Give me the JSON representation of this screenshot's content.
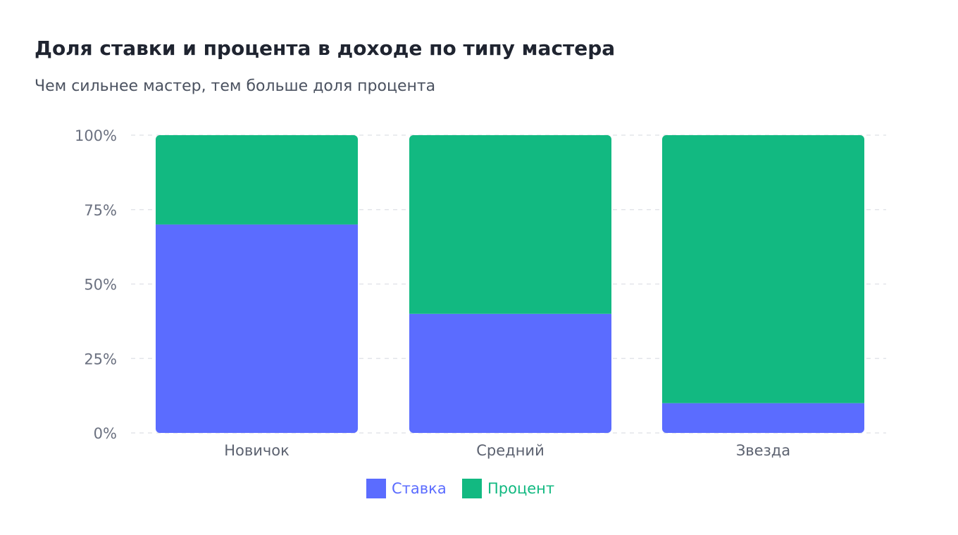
{
  "chart_data": {
    "type": "bar",
    "stacked": true,
    "title": "Доля ставки и процента в доходе по типу мастера",
    "subtitle": "Чем сильнее мастер, тем больше доля процента",
    "categories": [
      "Новичок",
      "Средний",
      "Звезда"
    ],
    "series": [
      {
        "name": "Ставка",
        "values": [
          70,
          40,
          10
        ],
        "color": "#5b6cff"
      },
      {
        "name": "Процент",
        "values": [
          30,
          60,
          90
        ],
        "color": "#12b981"
      }
    ],
    "ylim": [
      0,
      100
    ],
    "yticks": [
      0,
      25,
      50,
      75,
      100
    ],
    "ytick_labels": [
      "0%",
      "25%",
      "50%",
      "75%",
      "100%"
    ],
    "grid": true,
    "legend": "bottom-center"
  }
}
